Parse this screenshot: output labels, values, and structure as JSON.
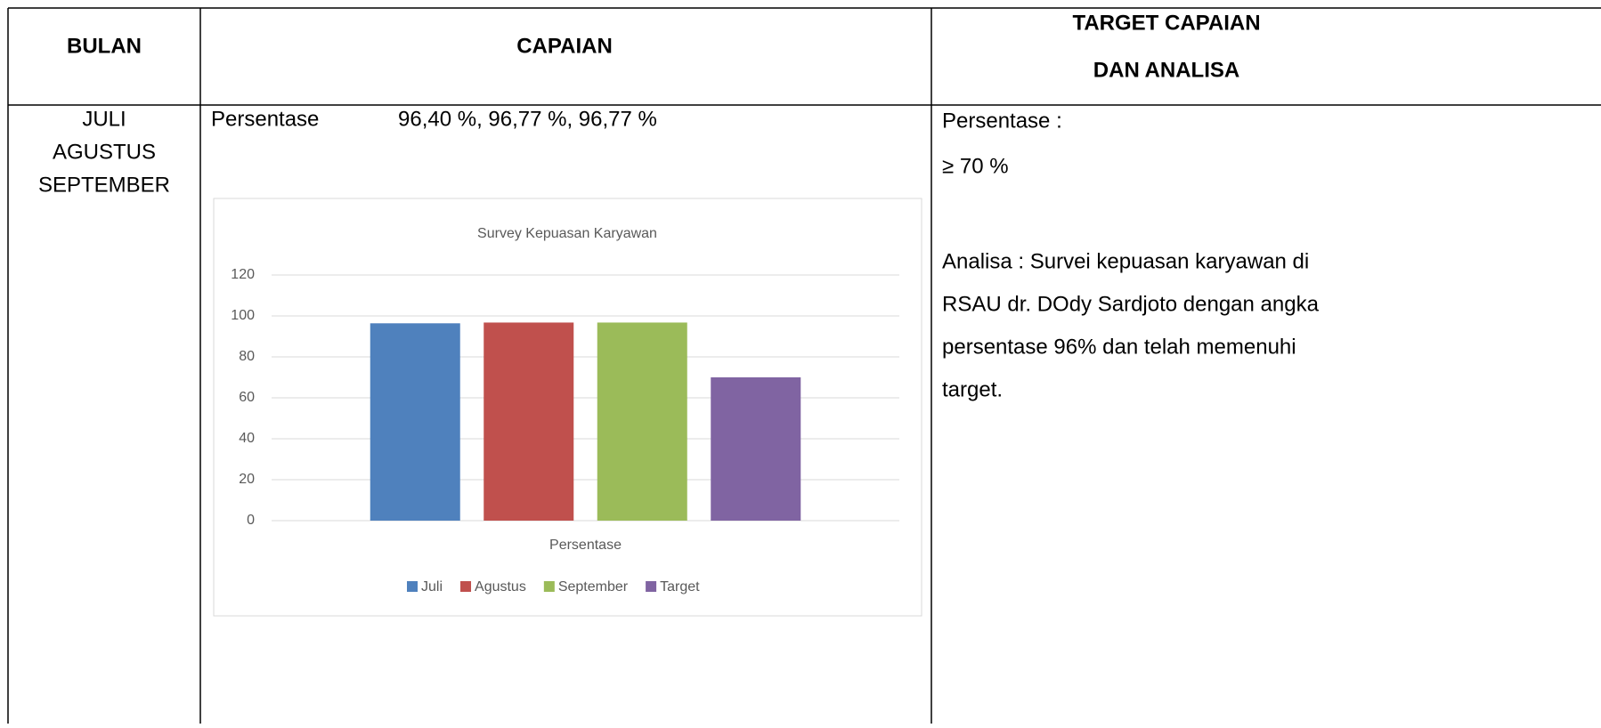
{
  "table": {
    "header": [
      "BULAN",
      "CAPAIAN",
      [
        "TARGET CAPAIAN",
        "DAN ANALISA"
      ]
    ],
    "rows": [
      [
        [
          "JULI",
          "AGUSTUS",
          "SEPTEMBER"
        ],
        {
          "label": "Persentase",
          "value": "96,40 %, 96,77 %, 96,77 %"
        },
        {
          "target_label": "Persentase :",
          "target": "≥ 70 %",
          "analysis": [
            "Analisa : Survei kepuasan karyawan di",
            "RSAU dr. DOdy Sardjoto dengan angka",
            "persentase 96% dan telah memenuhi",
            "target."
          ]
        }
      ]
    ]
  },
  "chart_data": {
    "type": "bar",
    "title": "Survey Kepuasan Karyawan",
    "categories": [
      "Persentase"
    ],
    "series": [
      {
        "name": "Juli",
        "color": "#4f81bd",
        "values": [
          96.4
        ]
      },
      {
        "name": "Agustus",
        "color": "#c0504d",
        "values": [
          96.77
        ]
      },
      {
        "name": "September",
        "color": "#9bbb59",
        "values": [
          96.77
        ]
      },
      {
        "name": "Target",
        "color": "#8064a2",
        "values": [
          70
        ]
      }
    ],
    "ylim": [
      0,
      120
    ],
    "yticks": [
      0,
      20,
      40,
      60,
      80,
      100,
      120
    ],
    "grid": true,
    "legend": "bottom"
  }
}
